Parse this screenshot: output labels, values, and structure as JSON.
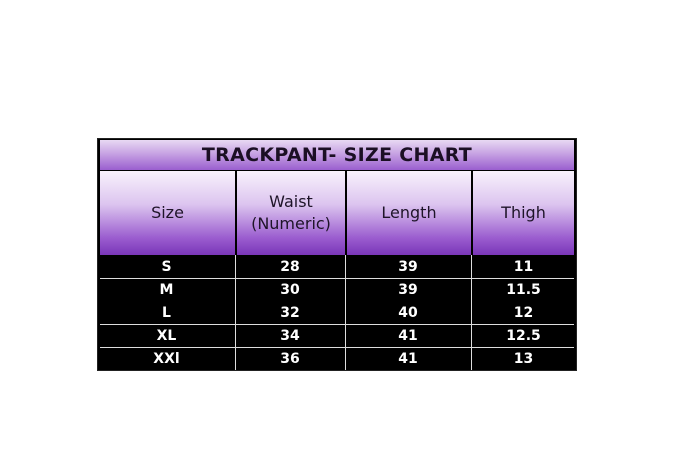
{
  "title": "TRACKPANT- SIZE CHART",
  "headers": [
    "Size",
    "Waist (Numeric)",
    "Length",
    "Thigh"
  ],
  "rows": [
    [
      "S",
      "28",
      "39",
      "11"
    ],
    [
      "M",
      "30",
      "39",
      "11.5"
    ],
    [
      "L",
      "32",
      "40",
      "12"
    ],
    [
      "XL",
      "34",
      "41",
      "12.5"
    ],
    [
      "XXl",
      "36",
      "41",
      "13"
    ]
  ],
  "colors": {
    "header_purple": "#7a36b8",
    "body_background": "#000000",
    "body_text": "#ffffff"
  }
}
